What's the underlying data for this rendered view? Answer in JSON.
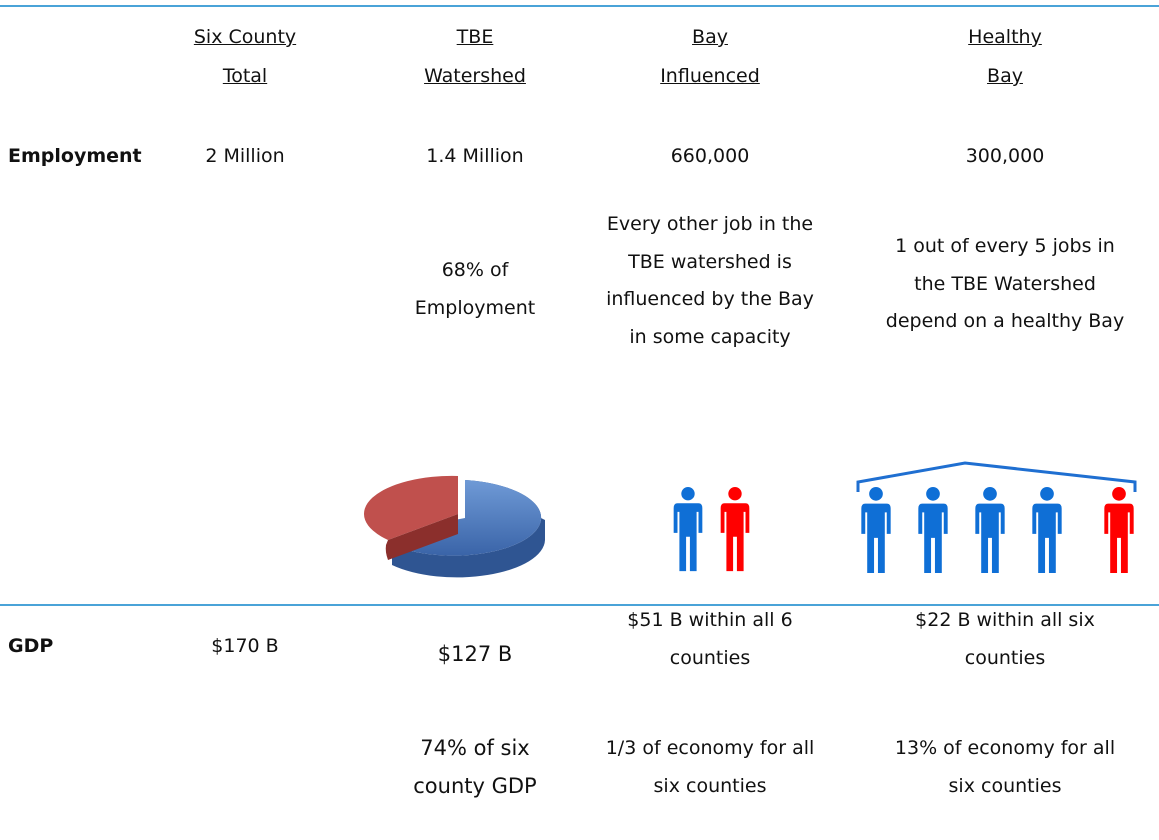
{
  "header": {
    "columns": [
      [
        "Six County",
        "Total"
      ],
      [
        "TBE",
        "Watershed"
      ],
      [
        "Bay",
        "Influenced"
      ],
      [
        "Healthy",
        "Bay"
      ]
    ]
  },
  "employment": {
    "label": "Employment",
    "cells": [
      "2 Million",
      "1.4 Million",
      "660,000",
      "300,000"
    ],
    "notes": [
      [
        "68% of",
        "Employment"
      ],
      [
        "Every other job in the",
        "TBE watershed is",
        "influenced by the Bay",
        "in some capacity"
      ],
      [
        "1 out of every 5 jobs in",
        "the TBE Watershed",
        "depend on a healthy Bay"
      ]
    ]
  },
  "gdp": {
    "label": "GDP",
    "cells": [
      "$170 B",
      "$127 B"
    ],
    "cells_multiline": [
      [
        "$51 B within all 6",
        "counties"
      ],
      [
        "$22 B within all six",
        "counties"
      ]
    ],
    "notes": [
      [
        "74% of six",
        "county GDP"
      ],
      [
        "1/3 of economy for all",
        "six counties"
      ],
      [
        "13% of economy for all",
        "six counties"
      ]
    ]
  }
}
